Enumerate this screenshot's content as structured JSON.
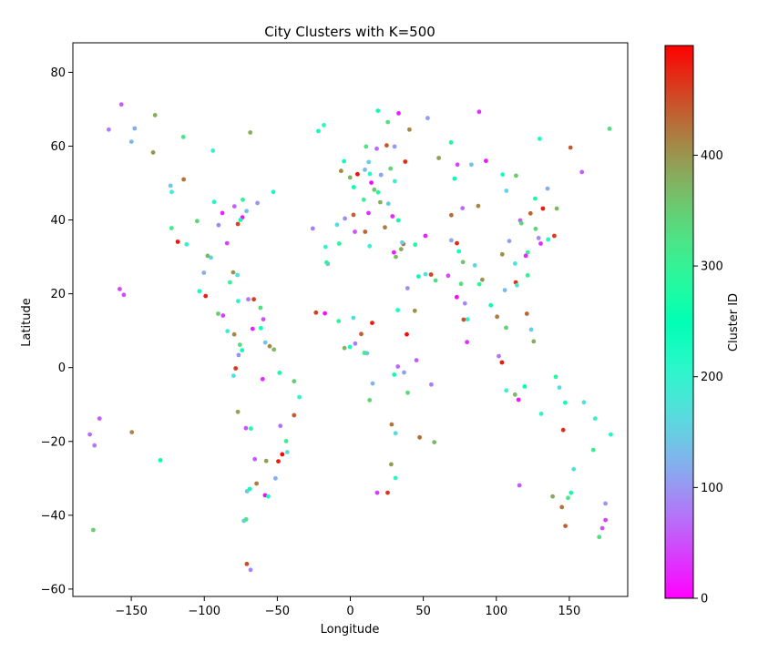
{
  "chart_data": {
    "type": "scatter",
    "title": "City Clusters with K=500",
    "xlabel": "Longitude",
    "ylabel": "Latitude",
    "xlim": [
      -190,
      190
    ],
    "ylim": [
      -62,
      88
    ],
    "xticks": [
      -150,
      -100,
      -50,
      0,
      50,
      100,
      150
    ],
    "yticks": [
      -60,
      -40,
      -20,
      0,
      20,
      40,
      60,
      80
    ],
    "xtick_labels": [
      "−150",
      "−100",
      "−50",
      "0",
      "50",
      "100",
      "150"
    ],
    "ytick_labels": [
      "−60",
      "−40",
      "−20",
      "0",
      "20",
      "40",
      "60",
      "80"
    ],
    "grid": false,
    "colormap": "rainbow",
    "colorbar": {
      "label": "Cluster ID",
      "min": 0,
      "max": 499,
      "ticks": [
        0,
        100,
        200,
        300,
        400
      ],
      "tick_labels": [
        "0",
        "100",
        "200",
        "300",
        "400"
      ]
    },
    "points": [
      [
        -73.9,
        40.7,
        12
      ],
      [
        -87.6,
        41.9,
        23
      ],
      [
        -118.2,
        34.1,
        487
      ],
      [
        -122.4,
        37.8,
        311
      ],
      [
        -95.4,
        29.8,
        156
      ],
      [
        -112.1,
        33.4,
        201
      ],
      [
        -104.9,
        39.7,
        342
      ],
      [
        -122.3,
        47.6,
        178
      ],
      [
        -80.2,
        25.8,
        402
      ],
      [
        -84.4,
        33.7,
        44
      ],
      [
        -75.2,
        40.0,
        267
      ],
      [
        -71.1,
        42.4,
        133
      ],
      [
        -77.0,
        38.9,
        455
      ],
      [
        -90.2,
        38.6,
        88
      ],
      [
        -93.3,
        44.9,
        219
      ],
      [
        -97.7,
        30.3,
        371
      ],
      [
        -79.4,
        43.7,
        64
      ],
      [
        -73.6,
        45.5,
        298
      ],
      [
        -123.1,
        49.3,
        141
      ],
      [
        -114.1,
        51.0,
        426
      ],
      [
        -99.1,
        19.4,
        477
      ],
      [
        -103.3,
        20.7,
        233
      ],
      [
        -100.3,
        25.7,
        119
      ],
      [
        -90.5,
        14.6,
        352
      ],
      [
        -87.2,
        14.1,
        41
      ],
      [
        -84.1,
        9.9,
        189
      ],
      [
        -79.5,
        9.0,
        412
      ],
      [
        -76.5,
        3.4,
        97
      ],
      [
        -74.1,
        4.7,
        246
      ],
      [
        -75.6,
        6.2,
        331
      ],
      [
        -66.9,
        10.5,
        18
      ],
      [
        -78.5,
        -0.2,
        463
      ],
      [
        -79.9,
        -2.2,
        175
      ],
      [
        -77.0,
        -12.0,
        388
      ],
      [
        -71.5,
        -16.4,
        52
      ],
      [
        -68.1,
        -16.5,
        281
      ],
      [
        -70.7,
        -33.5,
        137
      ],
      [
        -64.2,
        -31.4,
        420
      ],
      [
        -58.4,
        -34.6,
        3
      ],
      [
        -56.2,
        -34.9,
        226
      ],
      [
        -46.6,
        -23.5,
        498
      ],
      [
        -43.2,
        -22.9,
        163
      ],
      [
        -43.9,
        -19.9,
        310
      ],
      [
        -47.9,
        -15.8,
        72
      ],
      [
        -38.5,
        -12.9,
        440
      ],
      [
        -34.9,
        -8.0,
        205
      ],
      [
        -38.5,
        -3.7,
        350
      ],
      [
        -60.0,
        -3.1,
        29
      ],
      [
        -48.5,
        -1.4,
        274
      ],
      [
        -49.3,
        -25.4,
        481
      ],
      [
        -51.2,
        -30.0,
        122
      ],
      [
        -57.6,
        -25.3,
        393
      ],
      [
        -65.4,
        -24.8,
        58
      ],
      [
        -68.8,
        -32.9,
        238
      ],
      [
        -72.9,
        -41.5,
        147
      ],
      [
        -71.3,
        -41.1,
        320
      ],
      [
        -68.3,
        -54.8,
        86
      ],
      [
        -70.9,
        -53.2,
        451
      ],
      [
        -157.9,
        21.3,
        44
      ],
      [
        -155.1,
        19.7,
        52
      ],
      [
        -149.9,
        61.2,
        130
      ],
      [
        -147.7,
        64.8,
        118
      ],
      [
        -135.0,
        58.3,
        400
      ],
      [
        -175.2,
        -21.1,
        80
      ],
      [
        -171.8,
        -13.8,
        60
      ],
      [
        -178.4,
        -18.1,
        70
      ],
      [
        -176.0,
        -44.0,
        350
      ],
      [
        -130.1,
        -25.1,
        250
      ],
      [
        -149.6,
        -17.5,
        410
      ],
      [
        -0.1,
        51.5,
        377
      ],
      [
        2.4,
        48.9,
        256
      ],
      [
        -3.7,
        40.4,
        91
      ],
      [
        2.2,
        41.4,
        438
      ],
      [
        -9.1,
        38.7,
        170
      ],
      [
        12.5,
        41.9,
        32
      ],
      [
        9.2,
        45.5,
        303
      ],
      [
        13.4,
        52.5,
        214
      ],
      [
        4.9,
        52.4,
        489
      ],
      [
        10.0,
        53.6,
        127
      ],
      [
        16.4,
        48.2,
        360
      ],
      [
        14.4,
        50.1,
        7
      ],
      [
        19.0,
        47.5,
        282
      ],
      [
        21.0,
        52.2,
        198
      ],
      [
        24.9,
        60.2,
        445
      ],
      [
        18.1,
        59.3,
        66
      ],
      [
        10.8,
        59.9,
        325
      ],
      [
        12.6,
        55.7,
        153
      ],
      [
        -6.3,
        53.3,
        409
      ],
      [
        -4.3,
        55.9,
        241
      ],
      [
        30.3,
        59.9,
        99
      ],
      [
        37.6,
        55.8,
        471
      ],
      [
        30.5,
        50.5,
        185
      ],
      [
        27.6,
        53.9,
        339
      ],
      [
        28.9,
        41.0,
        25
      ],
      [
        32.9,
        39.9,
        263
      ],
      [
        23.7,
        38.0,
        417
      ],
      [
        26.1,
        44.4,
        144
      ],
      [
        20.5,
        44.8,
        380
      ],
      [
        21.0,
        52.2,
        111
      ],
      [
        -7.6,
        33.6,
        287
      ],
      [
        3.1,
        36.8,
        53
      ],
      [
        10.2,
        36.8,
        434
      ],
      [
        13.2,
        32.9,
        196
      ],
      [
        31.2,
        30.0,
        366
      ],
      [
        29.9,
        31.2,
        15
      ],
      [
        32.5,
        15.6,
        229
      ],
      [
        38.7,
        9.0,
        492
      ],
      [
        36.8,
        -1.3,
        108
      ],
      [
        39.3,
        -6.8,
        337
      ],
      [
        32.6,
        0.3,
        71
      ],
      [
        30.1,
        -1.9,
        259
      ],
      [
        28.3,
        -15.4,
        423
      ],
      [
        31.0,
        -17.8,
        162
      ],
      [
        28.0,
        -26.2,
        395
      ],
      [
        18.4,
        -33.9,
        37
      ],
      [
        31.0,
        -29.9,
        212
      ],
      [
        25.6,
        -33.9,
        466
      ],
      [
        15.3,
        -4.3,
        125
      ],
      [
        13.2,
        -8.8,
        348
      ],
      [
        3.4,
        6.5,
        81
      ],
      [
        7.5,
        9.1,
        440
      ],
      [
        -0.2,
        5.6,
        222
      ],
      [
        -4.0,
        5.3,
        376
      ],
      [
        -17.4,
        14.7,
        9
      ],
      [
        -8.0,
        12.6,
        292
      ],
      [
        2.1,
        13.5,
        167
      ],
      [
        15.0,
        12.1,
        483
      ],
      [
        11.5,
        3.9,
        139
      ],
      [
        9.7,
        4.0,
        317
      ],
      [
        45.3,
        2.0,
        56
      ],
      [
        44.2,
        15.4,
        404
      ],
      [
        46.7,
        24.7,
        245
      ],
      [
        39.2,
        21.5,
        94
      ],
      [
        55.3,
        25.2,
        457
      ],
      [
        51.5,
        25.3,
        179
      ],
      [
        58.4,
        23.6,
        332
      ],
      [
        51.4,
        35.7,
        21
      ],
      [
        44.4,
        33.3,
        276
      ],
      [
        36.3,
        33.5,
        429
      ],
      [
        35.5,
        33.9,
        150
      ],
      [
        34.8,
        32.1,
        385
      ],
      [
        67.0,
        24.9,
        48
      ],
      [
        74.3,
        31.5,
        235
      ],
      [
        73.0,
        33.7,
        474
      ],
      [
        69.2,
        34.5,
        117
      ],
      [
        77.2,
        28.6,
        359
      ],
      [
        72.9,
        19.1,
        4
      ],
      [
        88.4,
        22.6,
        285
      ],
      [
        80.3,
        13.1,
        207
      ],
      [
        77.6,
        13.0,
        448
      ],
      [
        78.5,
        17.4,
        90
      ],
      [
        75.9,
        22.7,
        327
      ],
      [
        85.3,
        27.7,
        160
      ],
      [
        90.4,
        23.8,
        398
      ],
      [
        79.9,
        6.9,
        31
      ],
      [
        96.2,
        16.9,
        267
      ],
      [
        100.5,
        13.8,
        419
      ],
      [
        105.8,
        21.0,
        128
      ],
      [
        106.7,
        10.8,
        346
      ],
      [
        101.7,
        3.1,
        75
      ],
      [
        103.8,
        1.4,
        486
      ],
      [
        106.8,
        -6.2,
        194
      ],
      [
        112.8,
        -7.3,
        368
      ],
      [
        115.2,
        -8.7,
        13
      ],
      [
        119.4,
        -5.1,
        252
      ],
      [
        120.9,
        14.6,
        433
      ],
      [
        123.9,
        10.3,
        148
      ],
      [
        125.6,
        7.1,
        381
      ],
      [
        116.4,
        39.9,
        61
      ],
      [
        121.5,
        31.2,
        300
      ],
      [
        113.3,
        23.1,
        469
      ],
      [
        114.1,
        22.3,
        172
      ],
      [
        104.1,
        30.7,
        406
      ],
      [
        108.9,
        34.3,
        107
      ],
      [
        117.2,
        39.1,
        339
      ],
      [
        120.2,
        30.3,
        22
      ],
      [
        126.6,
        45.8,
        271
      ],
      [
        123.4,
        41.8,
        437
      ],
      [
        112.9,
        28.2,
        183
      ],
      [
        126.9,
        37.6,
        344
      ],
      [
        129.0,
        35.1,
        92
      ],
      [
        139.7,
        35.7,
        460
      ],
      [
        135.5,
        34.7,
        220
      ],
      [
        141.4,
        43.1,
        371
      ],
      [
        130.4,
        33.6,
        27
      ],
      [
        121.5,
        25.0,
        294
      ],
      [
        106.9,
        47.9,
        158
      ],
      [
        87.6,
        43.8,
        411
      ],
      [
        76.9,
        43.2,
        68
      ],
      [
        71.4,
        51.2,
        251
      ],
      [
        69.2,
        41.3,
        428
      ],
      [
        82.9,
        55.0,
        138
      ],
      [
        60.6,
        56.8,
        393
      ],
      [
        73.4,
        55.0,
        45
      ],
      [
        104.3,
        52.3,
        231
      ],
      [
        131.9,
        43.1,
        484
      ],
      [
        135.1,
        48.5,
        120
      ],
      [
        113.5,
        52.0,
        356
      ],
      [
        92.9,
        56.0,
        14
      ],
      [
        151.2,
        -33.9,
        265
      ],
      [
        144.9,
        -37.8,
        424
      ],
      [
        153.0,
        -27.5,
        174
      ],
      [
        138.6,
        -34.9,
        387
      ],
      [
        115.9,
        -31.9,
        57
      ],
      [
        149.1,
        -35.3,
        314
      ],
      [
        147.3,
        -42.9,
        440
      ],
      [
        130.8,
        -12.5,
        210
      ],
      [
        145.8,
        -16.9,
        470
      ],
      [
        174.8,
        -36.8,
        100
      ],
      [
        172.6,
        -43.5,
        50
      ],
      [
        174.8,
        -41.3,
        40
      ],
      [
        170.5,
        -45.9,
        330
      ],
      [
        178.4,
        -18.1,
        215
      ],
      [
        166.4,
        -22.3,
        310
      ],
      [
        147.2,
        -9.5,
        235
      ],
      [
        143.2,
        -5.4,
        165
      ],
      [
        140.7,
        -2.5,
        280
      ],
      [
        160.0,
        -9.4,
        170
      ],
      [
        167.7,
        -13.8,
        200
      ],
      [
        -21.9,
        64.1,
        230
      ],
      [
        -18.1,
        65.7,
        210
      ],
      [
        18.9,
        69.6,
        245
      ],
      [
        25.7,
        66.5,
        330
      ],
      [
        33.1,
        68.9,
        20
      ],
      [
        40.5,
        64.5,
        410
      ],
      [
        53.0,
        67.6,
        105
      ],
      [
        69.0,
        61.0,
        280
      ],
      [
        88.2,
        69.3,
        30
      ],
      [
        129.7,
        62.0,
        220
      ],
      [
        150.8,
        59.6,
        440
      ],
      [
        158.6,
        53.0,
        60
      ],
      [
        177.5,
        64.7,
        330
      ],
      [
        -68.5,
        63.7,
        380
      ],
      [
        -94.1,
        58.8,
        200
      ],
      [
        -114.4,
        62.5,
        320
      ],
      [
        -133.7,
        68.4,
        380
      ],
      [
        -156.8,
        71.3,
        60
      ],
      [
        -165.4,
        64.5,
        80
      ],
      [
        -52.7,
        47.6,
        220
      ],
      [
        -63.6,
        44.6,
        100
      ],
      [
        -66.1,
        18.5,
        460
      ],
      [
        -69.9,
        18.5,
        80
      ],
      [
        -76.8,
        18.0,
        210
      ],
      [
        -82.4,
        23.1,
        300
      ],
      [
        -77.3,
        25.1,
        170
      ],
      [
        -61.5,
        16.2,
        330
      ],
      [
        -59.6,
        13.1,
        50
      ],
      [
        -61.2,
        10.7,
        240
      ],
      [
        -55.2,
        5.8,
        410
      ],
      [
        -58.2,
        6.8,
        140
      ],
      [
        -52.3,
        4.9,
        370
      ],
      [
        -23.5,
        14.9,
        460
      ],
      [
        -25.7,
        37.7,
        80
      ],
      [
        -15.4,
        28.1,
        130
      ],
      [
        -16.3,
        28.5,
        300
      ],
      [
        -17.0,
        32.7,
        200
      ],
      [
        57.5,
        -20.2,
        370
      ],
      [
        55.5,
        -4.6,
        80
      ],
      [
        47.5,
        -18.9,
        430
      ]
    ]
  }
}
